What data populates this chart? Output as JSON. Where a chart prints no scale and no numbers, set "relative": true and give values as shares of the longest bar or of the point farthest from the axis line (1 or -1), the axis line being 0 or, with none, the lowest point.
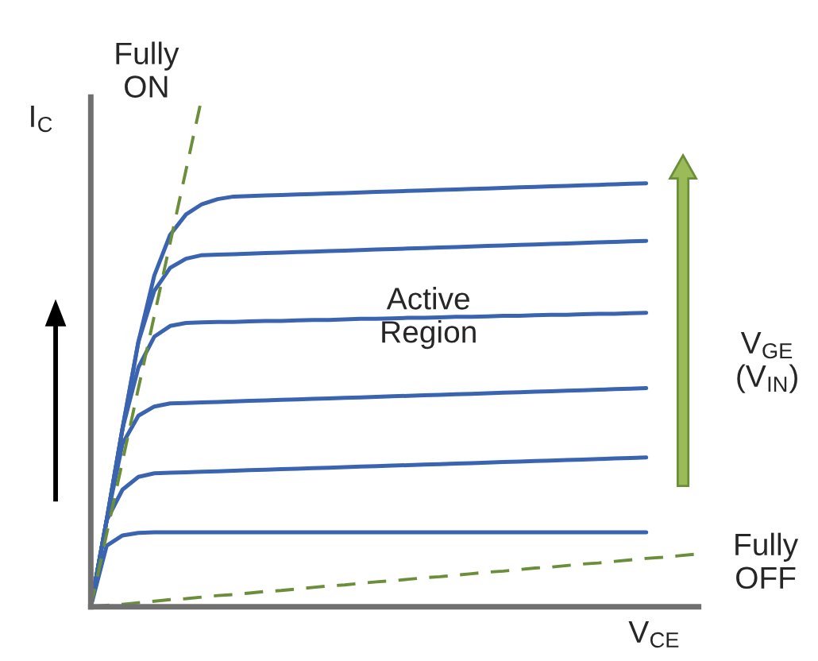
{
  "chart_data": {
    "type": "line",
    "relative": true,
    "xlabel": "V$_{CE}$",
    "ylabel": "I$_{C}$",
    "annotations": [
      "Fully ON",
      "Active Region",
      "V$_{GE}$ (V$_{IN}$)",
      "Fully OFF"
    ],
    "categories": [
      null,
      null,
      null,
      null,
      null,
      null,
      null,
      null,
      null,
      null,
      null,
      null,
      null,
      null,
      null,
      null,
      null,
      null,
      null,
      null,
      null,
      null,
      null,
      null,
      null,
      null,
      null,
      null,
      null,
      null,
      null,
      null,
      null,
      null,
      null,
      null,
      null,
      null,
      null
    ],
    "marker": "none",
    "series": [
      {
        "color": "#3a64b0",
        "line_style": "solid",
        "values": [
          0,
          0.17,
          0.35,
          0.52,
          0.65,
          0.73,
          0.77,
          0.79,
          0.8,
          0.805,
          0.806,
          0.807,
          0.808,
          0.809,
          0.81,
          0.811,
          0.812,
          0.813,
          0.814,
          0.815,
          0.816,
          0.817,
          0.818,
          0.819,
          0.82,
          0.821,
          0.822,
          0.823,
          0.824,
          0.825,
          0.826,
          0.827,
          0.828,
          0.829,
          0.83,
          0.831,
          null,
          null,
          null
        ]
      },
      {
        "color": "#3a64b0",
        "line_style": "solid",
        "values": [
          0,
          0.17,
          0.35,
          0.52,
          0.62,
          0.665,
          0.683,
          0.69,
          0.691,
          0.692,
          0.693,
          0.694,
          0.695,
          0.696,
          0.697,
          0.698,
          0.699,
          0.7,
          0.701,
          0.702,
          0.703,
          0.704,
          0.705,
          0.706,
          0.707,
          0.708,
          0.709,
          0.71,
          0.711,
          0.712,
          0.713,
          0.714,
          0.715,
          0.716,
          0.717,
          0.718,
          null,
          null,
          null
        ]
      },
      {
        "color": "#3a64b0",
        "line_style": "solid",
        "values": [
          0,
          0.17,
          0.35,
          0.47,
          0.53,
          0.551,
          0.557,
          0.558,
          0.559,
          0.559,
          0.56,
          0.561,
          0.561,
          0.562,
          0.563,
          0.563,
          0.564,
          0.565,
          0.565,
          0.566,
          0.567,
          0.567,
          0.568,
          0.569,
          0.569,
          0.57,
          0.571,
          0.571,
          0.572,
          0.573,
          0.573,
          0.574,
          0.575,
          0.575,
          0.576,
          0.577,
          null,
          null,
          null
        ]
      },
      {
        "color": "#3a64b0",
        "line_style": "solid",
        "values": [
          0,
          0.17,
          0.32,
          0.375,
          0.393,
          0.399,
          0.4,
          0.401,
          0.402,
          0.403,
          0.404,
          0.405,
          0.406,
          0.407,
          0.408,
          0.409,
          0.41,
          0.411,
          0.412,
          0.413,
          0.414,
          0.415,
          0.416,
          0.417,
          0.418,
          0.419,
          0.42,
          0.421,
          0.422,
          0.423,
          0.424,
          0.425,
          0.426,
          0.427,
          0.428,
          0.429,
          null,
          null,
          null
        ]
      },
      {
        "color": "#3a64b0",
        "line_style": "solid",
        "values": [
          0,
          0.17,
          0.23,
          0.255,
          0.262,
          0.263,
          0.264,
          0.265,
          0.266,
          0.267,
          0.268,
          0.269,
          0.27,
          0.271,
          0.272,
          0.273,
          0.274,
          0.275,
          0.276,
          0.277,
          0.278,
          0.279,
          0.28,
          0.281,
          0.282,
          0.283,
          0.284,
          0.285,
          0.286,
          0.287,
          0.288,
          0.289,
          0.29,
          0.291,
          0.292,
          0.293,
          null,
          null,
          null
        ]
      },
      {
        "color": "#3a64b0",
        "line_style": "solid",
        "values": [
          0,
          0.12,
          0.14,
          0.145,
          0.146,
          0.146,
          0.146,
          0.146,
          0.146,
          0.146,
          0.146,
          0.146,
          0.146,
          0.146,
          0.146,
          0.146,
          0.146,
          0.146,
          0.146,
          0.146,
          0.146,
          0.146,
          0.146,
          0.146,
          0.146,
          0.146,
          0.146,
          0.146,
          0.146,
          0.146,
          0.146,
          0.146,
          0.146,
          0.146,
          0.146,
          0.146,
          null,
          null,
          null
        ]
      },
      {
        "color": "#6b8e3a",
        "line_style": "dashed",
        "values": [
          0,
          0.143,
          0.286,
          0.429,
          0.571,
          0.714,
          0.857,
          1,
          null,
          null,
          null,
          null,
          null,
          null,
          null,
          null,
          null,
          null,
          null,
          null,
          null,
          null,
          null,
          null,
          null,
          null,
          null,
          null,
          null,
          null,
          null,
          null,
          null,
          null,
          null,
          null,
          null,
          null,
          null
        ]
      },
      {
        "color": "#6b8e3a",
        "line_style": "dashed",
        "values": [
          0,
          0.003,
          0.005,
          0.008,
          0.011,
          0.014,
          0.016,
          0.019,
          0.022,
          0.024,
          0.027,
          0.03,
          0.032,
          0.035,
          0.038,
          0.041,
          0.043,
          0.046,
          0.049,
          0.051,
          0.054,
          0.057,
          0.059,
          0.062,
          0.065,
          0.068,
          0.07,
          0.073,
          0.076,
          0.078,
          0.081,
          0.084,
          0.086,
          0.089,
          0.092,
          0.095,
          0.097,
          0.1,
          0.103
        ]
      }
    ]
  }
}
